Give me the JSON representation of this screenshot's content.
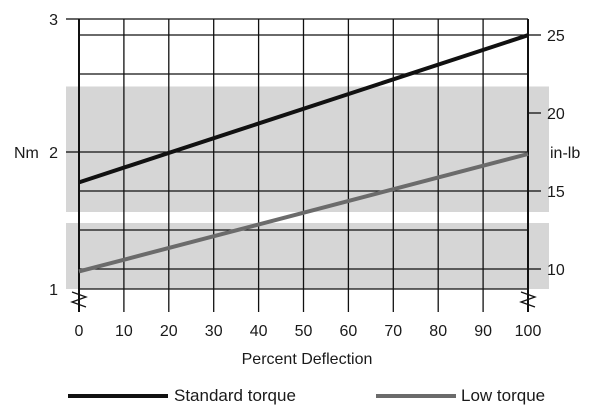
{
  "chart_data": {
    "type": "line",
    "title": "",
    "xlabel": "Percent Deflection",
    "ylabel_left": "Nm",
    "ylabel_right": "in-lb",
    "x_ticks": [
      0,
      10,
      20,
      30,
      40,
      50,
      60,
      70,
      80,
      90,
      100
    ],
    "y_left_ticks": [
      "1",
      "2",
      "3"
    ],
    "y_right_ticks": [
      "10",
      "15",
      "20",
      "25"
    ],
    "xlim": [
      0,
      100
    ],
    "ylim_left": [
      1,
      3
    ],
    "ylim_right": [
      10,
      25
    ],
    "grid": true,
    "axis_break": true,
    "shaded_bands_nm": [
      [
        1,
        1.5
      ],
      [
        1.5,
        2.5
      ]
    ],
    "legend_position": "bottom",
    "series": [
      {
        "name": "Standard torque",
        "color": "#111111",
        "x": [
          0,
          100
        ],
        "y": [
          1.79,
          2.88
        ]
      },
      {
        "name": "Low torque",
        "color": "#6b6b6b",
        "x": [
          0,
          100
        ],
        "y": [
          1.13,
          2.0
        ]
      }
    ]
  }
}
